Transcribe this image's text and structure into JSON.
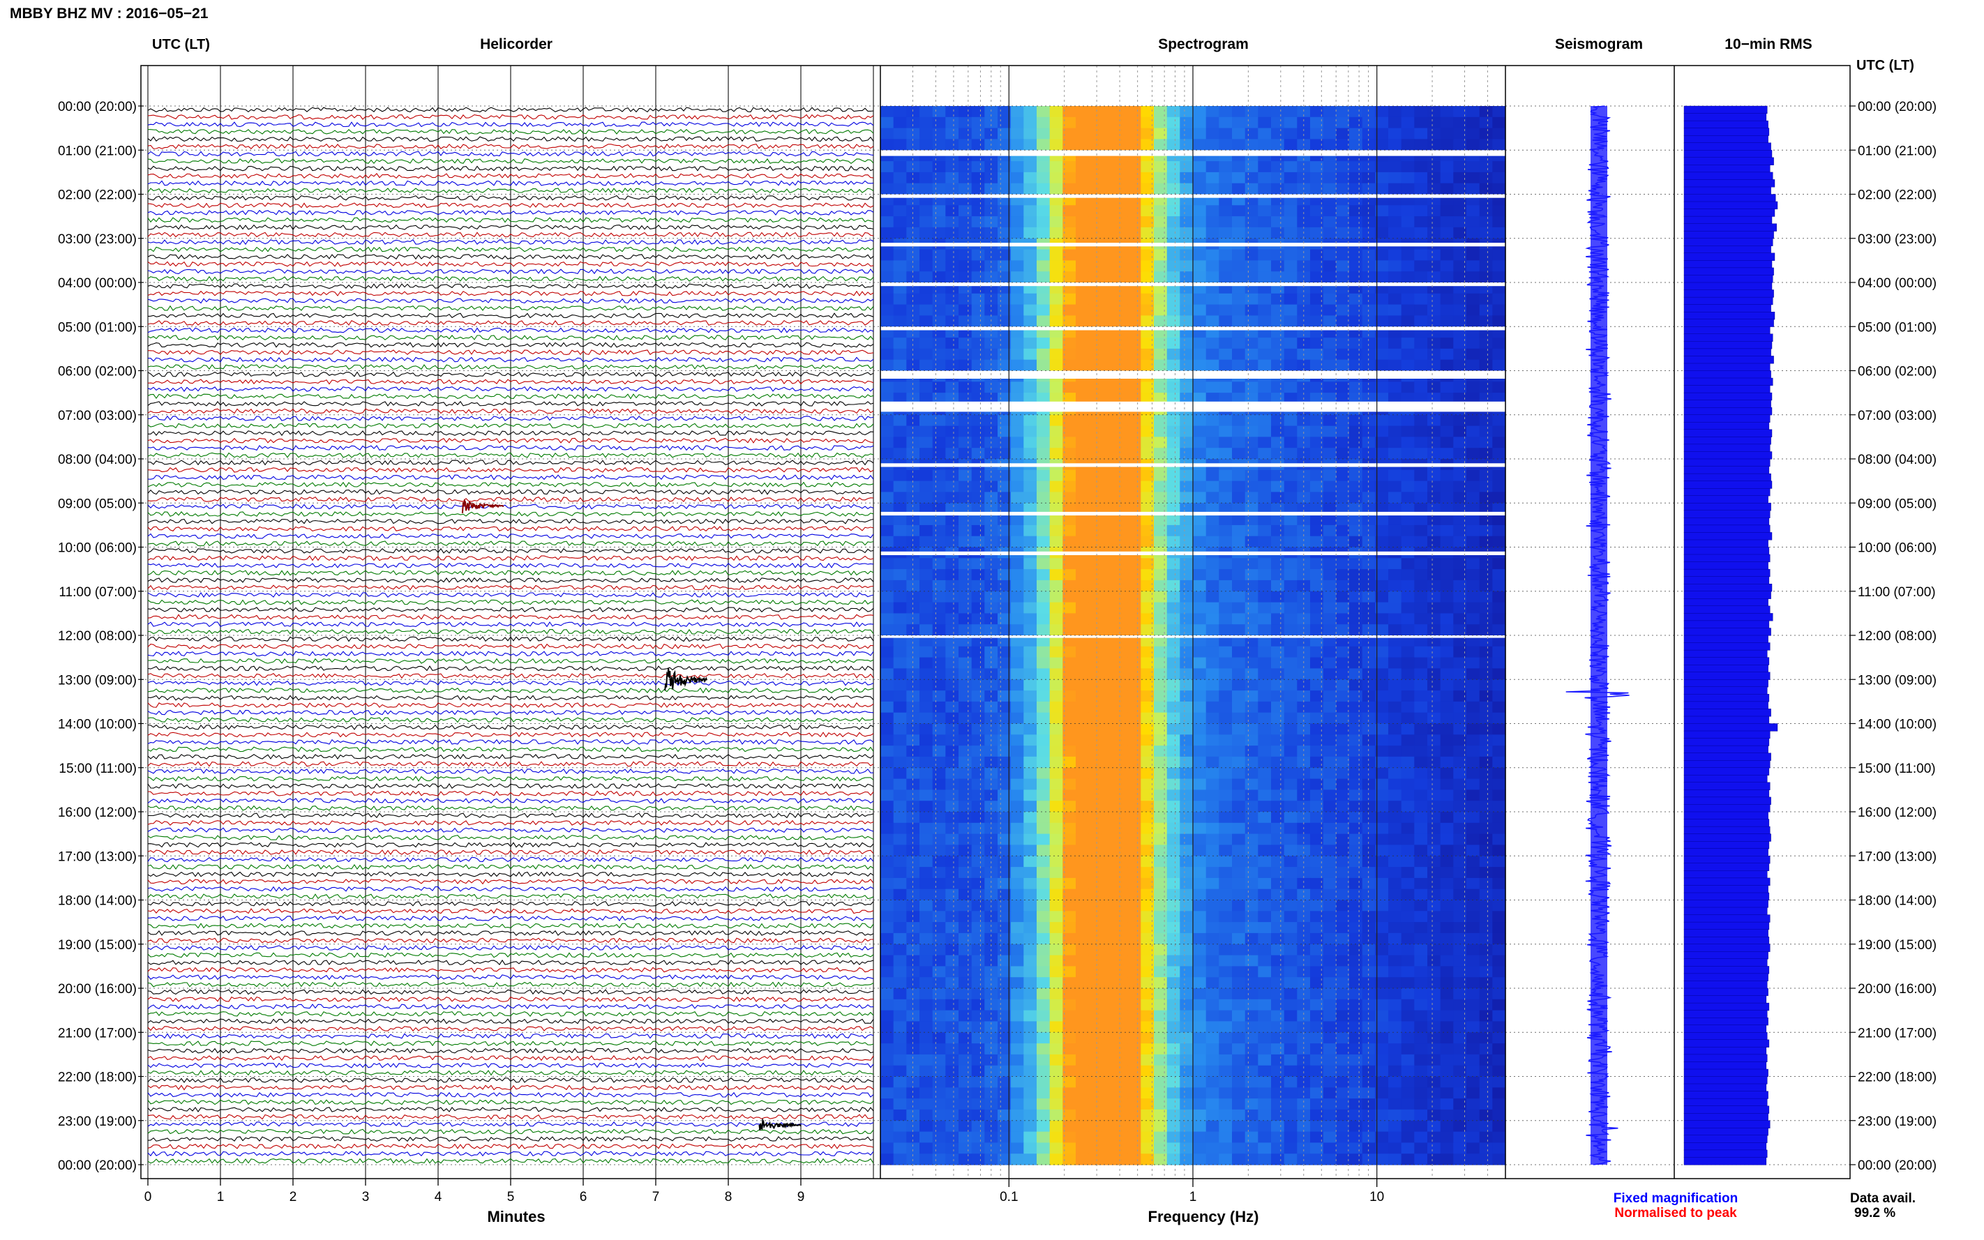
{
  "header": {
    "station_title": "MBBY BHZ MV : 2016−05−21"
  },
  "panels": {
    "helicorder": "Helicorder",
    "spectrogram": "Spectrogram",
    "seismogram": "Seismogram",
    "rms": "10−min RMS"
  },
  "axes": {
    "time_axis_label": "UTC (LT)",
    "minutes_label": "Minutes",
    "frequency_label": "Frequency (Hz)"
  },
  "legend": {
    "fixed": "Fixed magnification",
    "normalised": "Normalised to peak",
    "data_avail_label": "Data avail.",
    "data_avail_value": "99.2 %"
  },
  "colors": {
    "trace_cycle": [
      "#000000",
      "#c00000",
      "#0000e0",
      "#007a00"
    ],
    "legend_fixed": "#0000ff",
    "legend_normalised": "#ff0000",
    "seismogram_trace": "#1a1aff",
    "rms_bar": "#1010ee",
    "spectrogram_low": "#1010c8",
    "spectrogram_high": "#ffd000"
  },
  "chart_data": [
    {
      "type": "line",
      "title": "Helicorder",
      "xlabel": "Minutes",
      "xlim": [
        0,
        10
      ],
      "x_ticks": [
        "0",
        "1",
        "2",
        "3",
        "4",
        "5",
        "6",
        "7",
        "8",
        "9"
      ],
      "time_labels": [
        "00:00 (20:00)",
        "01:00 (21:00)",
        "02:00 (22:00)",
        "03:00 (23:00)",
        "04:00 (00:00)",
        "05:00 (01:00)",
        "06:00 (02:00)",
        "07:00 (03:00)",
        "08:00 (04:00)",
        "09:00 (05:00)",
        "10:00 (06:00)",
        "11:00 (07:00)",
        "12:00 (08:00)",
        "13:00 (09:00)",
        "14:00 (10:00)",
        "15:00 (11:00)",
        "16:00 (12:00)",
        "17:00 (13:00)",
        "18:00 (14:00)",
        "19:00 (15:00)",
        "20:00 (16:00)",
        "21:00 (17:00)",
        "22:00 (18:00)",
        "23:00 (19:00)",
        "00:00 (20:00)"
      ],
      "events": [
        {
          "label": "13:00 (09:00)",
          "minute": 7.3
        },
        {
          "label": "09:00 (05:00)",
          "minute": 4.5
        },
        {
          "label": "23:00 (19:00)",
          "minute": 8.6
        }
      ]
    },
    {
      "type": "heatmap",
      "title": "Spectrogram",
      "xlabel": "Frequency (Hz)",
      "x_scale": "log",
      "xlim": [
        0.02,
        50
      ],
      "x_tick_labels": [
        {
          "value": 0.1,
          "label": "0.1"
        },
        {
          "value": 1,
          "label": "1"
        },
        {
          "value": 10,
          "label": "10"
        }
      ],
      "peak_band_hz": [
        0.2,
        0.5
      ]
    },
    {
      "type": "line",
      "title": "Seismogram",
      "events": [
        {
          "label": "13:00 (09:00)"
        },
        {
          "label": "23:00 (19:00)"
        }
      ]
    },
    {
      "type": "bar",
      "title": "10−min RMS",
      "orientation": "horizontal",
      "note": "144 ten-minute RMS bars (00:00 to 24:00 UTC), relative amplitude",
      "values": [
        0.89,
        0.88,
        0.9,
        0.91,
        0.9,
        0.93,
        0.94,
        0.96,
        0.92,
        0.95,
        0.97,
        0.93,
        0.98,
        1.0,
        0.97,
        0.94,
        0.99,
        0.96,
        0.95,
        0.93,
        0.97,
        0.94,
        0.96,
        0.95,
        0.94,
        0.96,
        0.95,
        0.93,
        0.97,
        0.96,
        0.92,
        0.95,
        0.94,
        0.93,
        0.96,
        0.92,
        0.93,
        0.95,
        0.92,
        0.94,
        0.93,
        0.94,
        0.92,
        0.91,
        0.94,
        0.93,
        0.92,
        0.94,
        0.92,
        0.91,
        0.93,
        0.94,
        0.92,
        0.9,
        0.93,
        0.92,
        0.91,
        0.92,
        0.94,
        0.9,
        0.91,
        0.92,
        0.9,
        0.92,
        0.91,
        0.94,
        0.93,
        0.9,
        0.92,
        0.95,
        0.91,
        0.93,
        0.9,
        0.92,
        0.89,
        0.91,
        0.9,
        0.92,
        0.9,
        0.89,
        0.91,
        0.9,
        0.93,
        0.91,
        1.0,
        0.92,
        0.91,
        0.9,
        0.93,
        0.92,
        0.91,
        0.89,
        0.92,
        0.91,
        0.93,
        0.92,
        0.9,
        0.91,
        0.92,
        0.93,
        0.91,
        0.9,
        0.92,
        0.91,
        0.89,
        0.92,
        0.9,
        0.91,
        0.9,
        0.89,
        0.92,
        0.91,
        0.9,
        0.91,
        0.92,
        0.9,
        0.89,
        0.91,
        0.9,
        0.89,
        0.9,
        0.88,
        0.91,
        0.89,
        0.9,
        0.88,
        0.89,
        0.91,
        0.88,
        0.89,
        0.88,
        0.9,
        0.89,
        0.88,
        0.9,
        0.89,
        0.91,
        0.9,
        0.92,
        0.9,
        0.89,
        0.88,
        0.89,
        0.88
      ]
    }
  ]
}
